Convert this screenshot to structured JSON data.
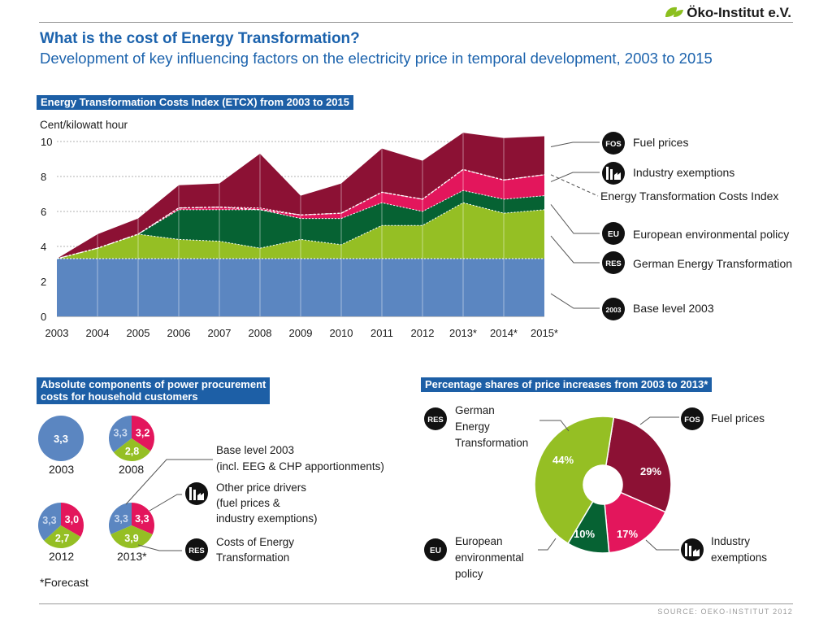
{
  "header": {
    "logo_text": "Öko-Institut e.V.",
    "title": "What is the cost of Energy Transformation?",
    "subtitle": "Development of key influencing factors on the electricity price in temporal development, 2003 to 2015"
  },
  "colors": {
    "base": "#5b86c1",
    "res": "#95bf24",
    "eu": "#066233",
    "exemptions": "#e3165c",
    "fuel": "#8c1134",
    "title_blue": "#1c63ad"
  },
  "etcx": {
    "section_label": "Energy Transformation Costs Index (ETCX) from 2003 to 2015",
    "y_unit": "Cent/kilowatt hour",
    "legend": {
      "fuel": {
        "badge": "FOS",
        "label": "Fuel prices"
      },
      "exemptions": {
        "label": "Industry exemptions"
      },
      "index": {
        "label": "Energy Transformation Costs Index"
      },
      "eu": {
        "badge": "EU",
        "label": "European environmental policy"
      },
      "res": {
        "badge": "RES",
        "label": "German Energy Transformation"
      },
      "base": {
        "badge": "2003",
        "label": "Base level 2003"
      }
    }
  },
  "components": {
    "section_label_line1": "Absolute components of power procurement",
    "section_label_line2": "costs for household customers",
    "legend": {
      "base_line1": "Base level 2003",
      "base_line2": "(incl. EEG & CHP apportionments)",
      "other_line1": "Other price drivers",
      "other_line2": "(fuel prices &",
      "other_line3": "industry exemptions)",
      "res_badge": "RES",
      "res_line1": "Costs of Energy",
      "res_line2": "Transformation"
    },
    "forecast_note": "*Forecast",
    "pies": [
      {
        "year": "2003",
        "base": "3,3",
        "other": "",
        "res": ""
      },
      {
        "year": "2008",
        "base": "3,3",
        "other": "3,2",
        "res": "2,8"
      },
      {
        "year": "2012",
        "base": "3,3",
        "other": "3,0",
        "res": "2,7"
      },
      {
        "year": "2013*",
        "base": "3,3",
        "other": "3,3",
        "res": "3,9"
      }
    ]
  },
  "shares": {
    "section_label": "Percentage shares of price increases from 2003 to 2013*",
    "res_badge": "RES",
    "res_line1": "German",
    "res_line2": "Energy",
    "res_line3": "Transformation",
    "fos_badge": "FOS",
    "fos_label": "Fuel prices",
    "eu_badge": "EU",
    "eu_line1": "European",
    "eu_line2": "environmental",
    "eu_line3": "policy",
    "exemptions_line1": "Industry",
    "exemptions_line2": "exemptions",
    "pct_res": "44%",
    "pct_fuel": "29%",
    "pct_exemptions": "17%",
    "pct_eu": "10%"
  },
  "footer": {
    "source": "SOURCE: OEKO-INSTITUT 2012"
  },
  "chart_data": [
    {
      "type": "area",
      "title": "Energy Transformation Costs Index (ETCX) from 2003 to 2015",
      "ylabel": "Cent/kilowatt hour",
      "xlabel": "",
      "ylim": [
        0,
        10
      ],
      "yticks": [
        "0",
        "2",
        "4",
        "6",
        "8",
        "10"
      ],
      "categories": [
        "2003",
        "2004",
        "2005",
        "2006",
        "2007",
        "2008",
        "2009",
        "2010",
        "2011",
        "2012",
        "2013*",
        "2014*",
        "2015*"
      ],
      "stacked": true,
      "series": [
        {
          "name": "Base level 2003",
          "values": [
            3.3,
            3.3,
            3.3,
            3.3,
            3.3,
            3.3,
            3.3,
            3.3,
            3.3,
            3.3,
            3.3,
            3.3,
            3.3
          ]
        },
        {
          "name": "German Energy Transformation",
          "values": [
            0.0,
            0.6,
            1.4,
            1.1,
            1.0,
            0.6,
            1.1,
            0.8,
            1.9,
            1.9,
            3.2,
            2.6,
            2.8
          ]
        },
        {
          "name": "European environmental policy",
          "values": [
            0.0,
            0.0,
            0.0,
            1.7,
            1.8,
            2.2,
            1.2,
            1.5,
            1.3,
            0.8,
            0.7,
            0.8,
            0.8
          ]
        },
        {
          "name": "Industry exemptions",
          "values": [
            0.0,
            0.0,
            0.0,
            0.1,
            0.15,
            0.1,
            0.2,
            0.3,
            0.6,
            0.7,
            1.2,
            1.1,
            1.2
          ]
        },
        {
          "name": "Fuel prices",
          "values": [
            0.0,
            0.8,
            0.9,
            1.3,
            1.35,
            3.1,
            1.1,
            1.7,
            2.5,
            2.2,
            2.1,
            2.4,
            2.2
          ]
        }
      ],
      "index_line": {
        "name": "Energy Transformation Costs Index",
        "values": [
          3.3,
          3.9,
          4.7,
          6.2,
          6.25,
          6.1,
          5.8,
          5.9,
          7.1,
          6.7,
          8.4,
          7.8,
          8.1
        ]
      },
      "grid": "horizontal dashed",
      "legend_position": "right"
    },
    {
      "type": "pie",
      "title": "Absolute components of power procurement costs for household customers",
      "categories": [
        "Base level 2003",
        "Other price drivers",
        "Costs of Energy Transformation"
      ],
      "series": [
        {
          "name": "2003",
          "values": [
            3.3,
            0,
            0
          ]
        },
        {
          "name": "2008",
          "values": [
            3.3,
            3.2,
            2.8
          ]
        },
        {
          "name": "2012",
          "values": [
            3.3,
            3.0,
            2.7
          ]
        },
        {
          "name": "2013*",
          "values": [
            3.3,
            3.3,
            3.9
          ]
        }
      ]
    },
    {
      "type": "pie",
      "title": "Percentage shares of price increases from 2003 to 2013*",
      "categories": [
        "German Energy Transformation",
        "Fuel prices",
        "Industry exemptions",
        "European environmental policy"
      ],
      "values": [
        44,
        29,
        17,
        10
      ],
      "unit": "%"
    }
  ]
}
